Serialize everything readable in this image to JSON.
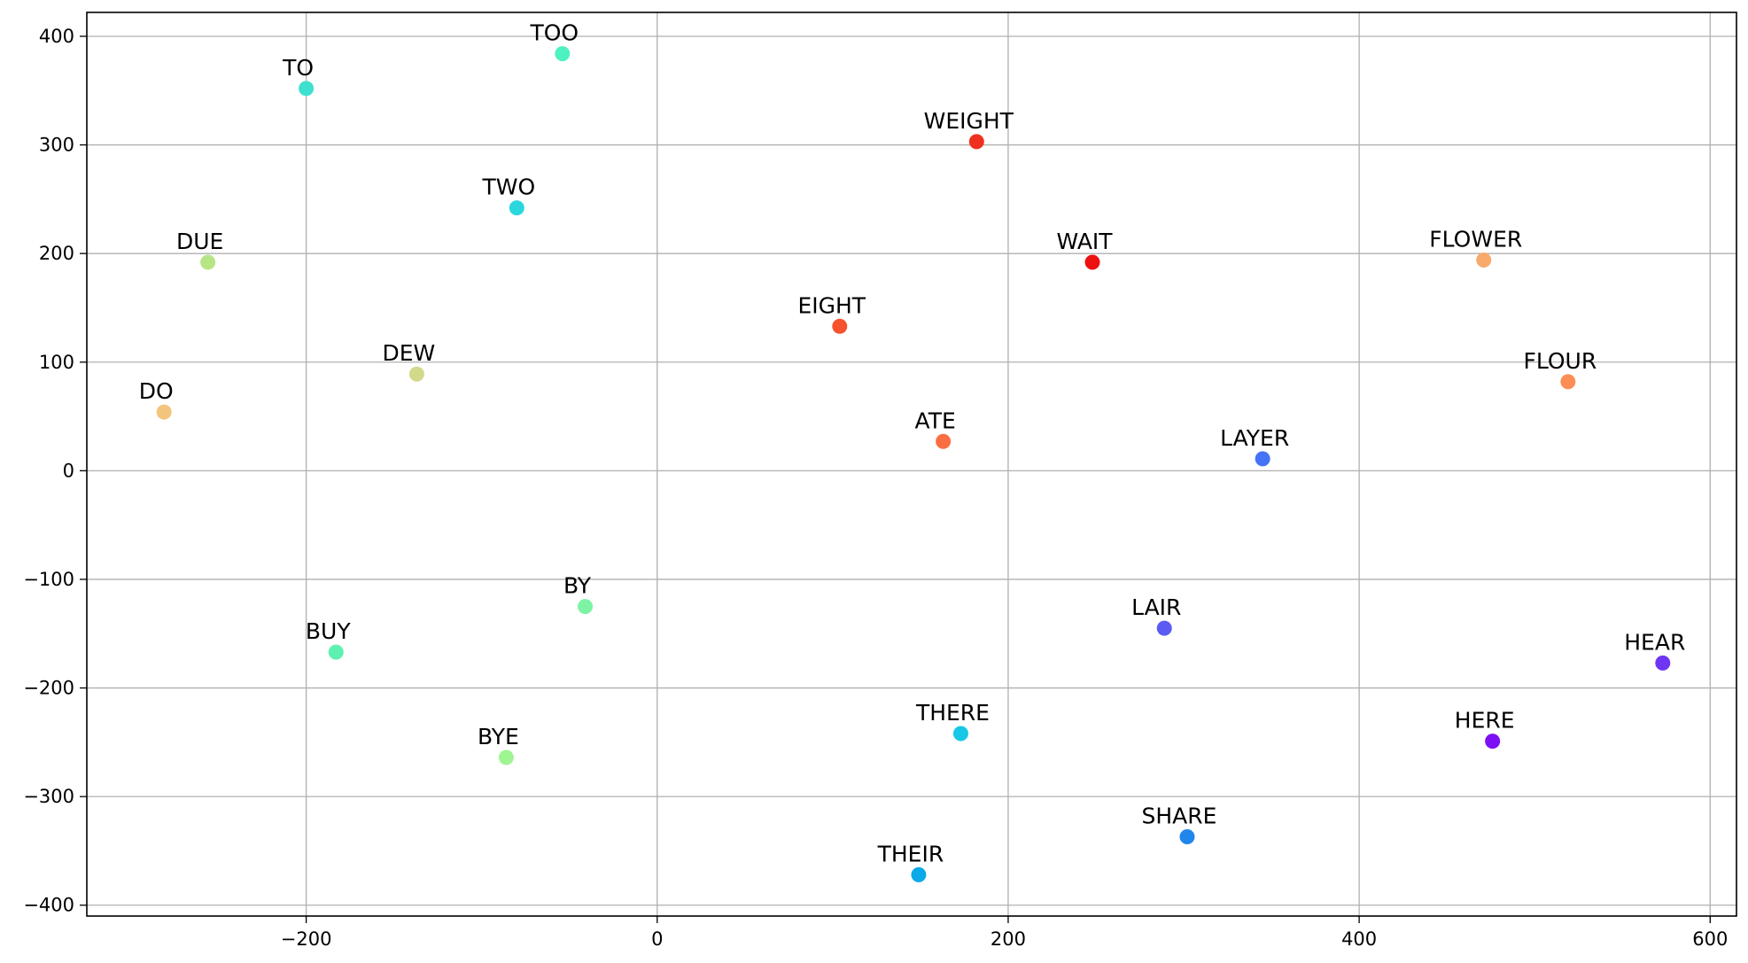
{
  "chart_data": {
    "type": "scatter",
    "title": "",
    "xlabel": "",
    "ylabel": "",
    "xlim": [
      -325,
      615
    ],
    "ylim": [
      -410,
      422
    ],
    "xticks": [
      -200,
      0,
      200,
      400,
      600
    ],
    "yticks": [
      -400,
      -300,
      -200,
      -100,
      0,
      100,
      200,
      300,
      400
    ],
    "grid": true,
    "legend": "none",
    "points": [
      {
        "label": "TOO",
        "x": -54,
        "y": 384,
        "color": "#4ef2c0"
      },
      {
        "label": "TO",
        "x": -200,
        "y": 352,
        "color": "#3ee0cf"
      },
      {
        "label": "WEIGHT",
        "x": 182,
        "y": 303,
        "color": "#f0301e"
      },
      {
        "label": "TWO",
        "x": -80,
        "y": 242,
        "color": "#2bd6de"
      },
      {
        "label": "DUE",
        "x": -256,
        "y": 192,
        "color": "#b7e585"
      },
      {
        "label": "WAIT",
        "x": 248,
        "y": 192,
        "color": "#ee1111"
      },
      {
        "label": "FLOWER",
        "x": 471,
        "y": 194,
        "color": "#f9a96a"
      },
      {
        "label": "EIGHT",
        "x": 104,
        "y": 133,
        "color": "#f65230"
      },
      {
        "label": "DEW",
        "x": -137,
        "y": 89,
        "color": "#d2d98b"
      },
      {
        "label": "FLOUR",
        "x": 519,
        "y": 82,
        "color": "#fd8c56"
      },
      {
        "label": "DO",
        "x": -281,
        "y": 54,
        "color": "#f3c57c"
      },
      {
        "label": "ATE",
        "x": 163,
        "y": 27,
        "color": "#fb6e42"
      },
      {
        "label": "LAYER",
        "x": 345,
        "y": 11,
        "color": "#4473f7"
      },
      {
        "label": "BY",
        "x": -41,
        "y": -125,
        "color": "#7cf3a5"
      },
      {
        "label": "LAIR",
        "x": 289,
        "y": -145,
        "color": "#5b5bf3"
      },
      {
        "label": "BUY",
        "x": -183,
        "y": -167,
        "color": "#5ef0b0"
      },
      {
        "label": "HEAR",
        "x": 573,
        "y": -177,
        "color": "#6e35f2"
      },
      {
        "label": "THERE",
        "x": 173,
        "y": -242,
        "color": "#17c7e6"
      },
      {
        "label": "HERE",
        "x": 476,
        "y": -249,
        "color": "#7d0ff5"
      },
      {
        "label": "BYE",
        "x": -86,
        "y": -264,
        "color": "#a0f593"
      },
      {
        "label": "SHARE",
        "x": 302,
        "y": -337,
        "color": "#2186ec"
      },
      {
        "label": "THEIR",
        "x": 149,
        "y": -372,
        "color": "#0aa9e8"
      }
    ]
  }
}
